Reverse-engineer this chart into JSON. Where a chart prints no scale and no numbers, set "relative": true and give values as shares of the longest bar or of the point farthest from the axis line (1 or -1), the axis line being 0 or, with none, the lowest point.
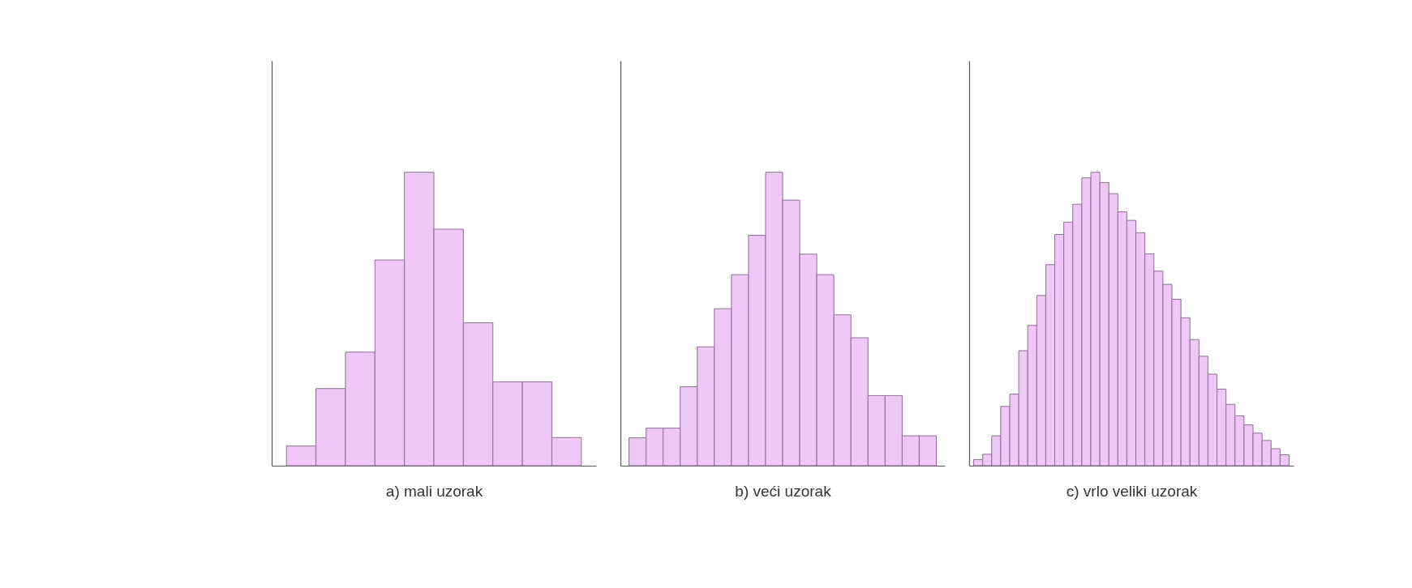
{
  "chart_data": [
    {
      "type": "bar",
      "relative": true,
      "tick_labels": false,
      "xlabel": "a) mali uzorak",
      "color": "#efc8f7",
      "categories": [
        null,
        null,
        null,
        null,
        null,
        null,
        null,
        null,
        null,
        null
      ],
      "values": [
        0.067,
        0.263,
        0.387,
        0.701,
        1,
        0.806,
        0.487,
        0.286,
        0.286,
        0.096
      ]
    },
    {
      "type": "bar",
      "relative": true,
      "tick_labels": false,
      "xlabel": "b) veći uzorak",
      "color": "#efc8f7",
      "categories": [
        null,
        null,
        null,
        null,
        null,
        null,
        null,
        null,
        null,
        null,
        null,
        null,
        null,
        null,
        null,
        null,
        null,
        null
      ],
      "values": [
        0.095,
        0.128,
        0.128,
        0.269,
        0.405,
        0.535,
        0.651,
        0.785,
        1,
        0.905,
        0.721,
        0.651,
        0.514,
        0.436,
        0.239,
        0.239,
        0.102,
        0.102
      ]
    },
    {
      "type": "bar",
      "relative": true,
      "tick_labels": false,
      "xlabel": "c) vrlo veliki uzorak",
      "color": "#efc8f7",
      "categories": [
        null,
        null,
        null,
        null,
        null,
        null,
        null,
        null,
        null,
        null,
        null,
        null,
        null,
        null,
        null,
        null,
        null,
        null,
        null,
        null,
        null,
        null,
        null,
        null,
        null,
        null,
        null,
        null,
        null,
        null,
        null,
        null,
        null,
        null,
        null
      ],
      "values": [
        0.021,
        0.039,
        0.102,
        0.202,
        0.244,
        0.392,
        0.478,
        0.58,
        0.685,
        0.788,
        0.83,
        0.891,
        0.981,
        1,
        0.965,
        0.927,
        0.865,
        0.836,
        0.794,
        0.722,
        0.663,
        0.618,
        0.567,
        0.504,
        0.43,
        0.373,
        0.312,
        0.261,
        0.209,
        0.17,
        0.139,
        0.111,
        0.086,
        0.058,
        0.037
      ]
    }
  ]
}
